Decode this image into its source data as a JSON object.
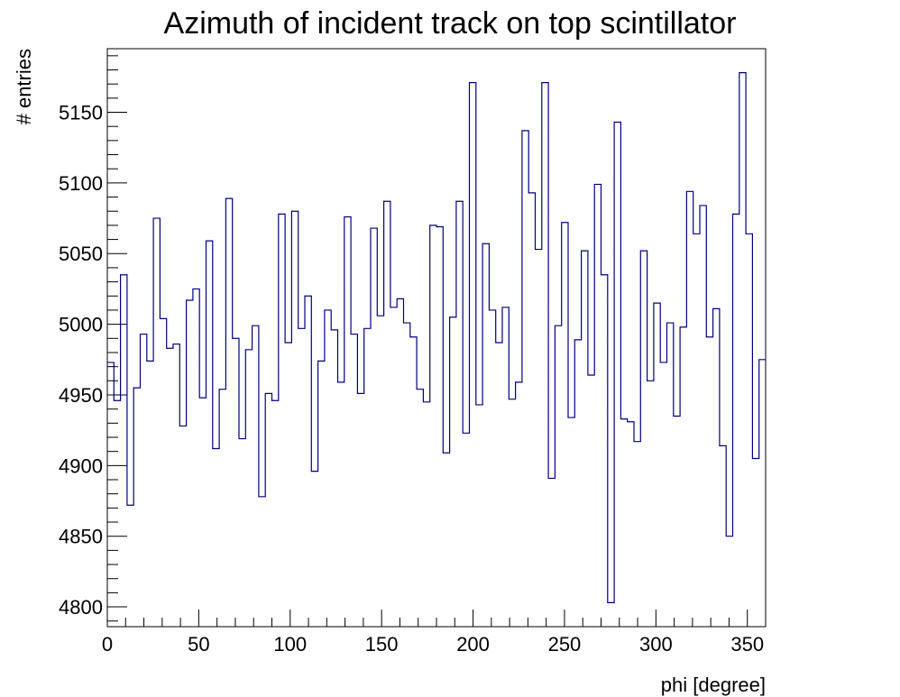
{
  "chart_data": {
    "type": "histogram",
    "title": "Azimuth of incident track on top scintillator",
    "xlabel": "phi [degree]",
    "ylabel": "# entries",
    "xlim": [
      0,
      360
    ],
    "ylim": [
      4786,
      5195
    ],
    "bin_width": 3.6,
    "x_ticks": [
      0,
      50,
      100,
      150,
      200,
      250,
      300,
      350
    ],
    "y_ticks": [
      4800,
      4850,
      4900,
      4950,
      5000,
      5050,
      5100,
      5150
    ],
    "line_color": "#000080",
    "grid": false,
    "legend": "none",
    "values": [
      4973,
      4946,
      5035,
      4872,
      4955,
      4993,
      4974,
      5075,
      5004,
      4983,
      4986,
      4928,
      5017,
      5025,
      4948,
      5059,
      4912,
      4954,
      5089,
      4990,
      4919,
      4982,
      4999,
      4878,
      4951,
      4946,
      5078,
      4987,
      5080,
      4997,
      5020,
      4896,
      4974,
      5010,
      4996,
      4959,
      5076,
      4993,
      4951,
      4997,
      5068,
      5006,
      5087,
      5012,
      5018,
      5001,
      4991,
      4954,
      4945,
      5070,
      5069,
      4909,
      5005,
      5087,
      4923,
      5171,
      4943,
      5057,
      5010,
      4987,
      5012,
      4947,
      4959,
      5137,
      5093,
      5053,
      5171,
      4891,
      4999,
      5072,
      4934,
      4989,
      5052,
      4964,
      5099,
      5035,
      4803,
      5143,
      4933,
      4931,
      4917,
      5052,
      4960,
      5015,
      4973,
      5001,
      4935,
      4998,
      5094,
      5064,
      5084,
      4991,
      5011,
      4914,
      4850,
      5078,
      5178,
      5064,
      4905,
      4975
    ]
  }
}
